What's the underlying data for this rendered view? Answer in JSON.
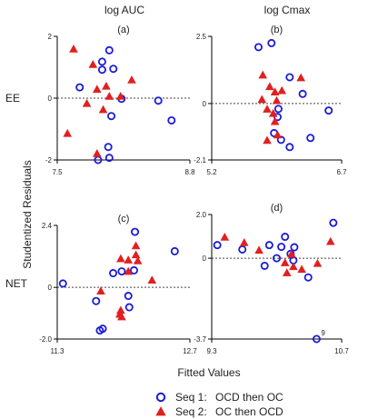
{
  "figure": {
    "column_titles": [
      "log AUC",
      "log Cmax"
    ],
    "row_labels": [
      "EE",
      "NET"
    ],
    "y_axis_title": "Studentized Residuals",
    "x_axis_title": "Fitted Values"
  },
  "legend": {
    "entries": [
      {
        "key": "Seq 1:",
        "desc": "OCD then OC",
        "marker": "circle",
        "color": "#1a1adc"
      },
      {
        "key": "Seq 2:",
        "desc": "OC then OCD",
        "marker": "triangle",
        "color": "#e02020"
      }
    ]
  },
  "chart_data": [
    {
      "type": "scatter",
      "label": "(a)",
      "xlim": [
        7.5,
        8.8
      ],
      "ylim": [
        -2,
        2
      ],
      "x_ticks": [
        "7.5",
        "8.8"
      ],
      "y_ticks": [
        "2",
        "0",
        "-2"
      ],
      "y_tick_values": [
        2,
        0,
        -2
      ],
      "series": [
        {
          "name": "Seq 1: OCD then OC",
          "marker": "circle",
          "points": [
            [
              8.01,
              1.55
            ],
            [
              7.94,
              1.18
            ],
            [
              7.94,
              0.92
            ],
            [
              8.05,
              0.95
            ],
            [
              7.72,
              0.35
            ],
            [
              8.13,
              -0.02
            ],
            [
              8.03,
              -0.58
            ],
            [
              8.49,
              -0.08
            ],
            [
              8.62,
              -0.72
            ],
            [
              8.0,
              -1.58
            ],
            [
              8.01,
              -1.93
            ],
            [
              7.9,
              -2.0
            ]
          ]
        },
        {
          "name": "Seq 2: OC then OCD",
          "marker": "triangle",
          "points": [
            [
              7.66,
              1.58
            ],
            [
              7.85,
              1.08
            ],
            [
              8.23,
              0.58
            ],
            [
              7.98,
              0.38
            ],
            [
              7.89,
              0.28
            ],
            [
              8.01,
              0.05
            ],
            [
              8.12,
              0.05
            ],
            [
              7.79,
              -0.18
            ],
            [
              7.95,
              -0.38
            ],
            [
              7.6,
              -1.15
            ],
            [
              7.89,
              -1.8
            ]
          ]
        }
      ]
    },
    {
      "type": "scatter",
      "label": "(b)",
      "xlim": [
        5.2,
        6.7
      ],
      "ylim": [
        -2.1,
        2.5
      ],
      "x_ticks": [
        "5.2",
        "6.7"
      ],
      "y_ticks": [
        "2.5",
        "0",
        "-2.1"
      ],
      "y_tick_values": [
        2.5,
        0,
        -2.1
      ],
      "series": [
        {
          "name": "Seq 1: OCD then OC",
          "marker": "circle",
          "points": [
            [
              5.74,
              2.1
            ],
            [
              5.89,
              2.25
            ],
            [
              6.1,
              0.98
            ],
            [
              6.25,
              0.36
            ],
            [
              6.55,
              -0.26
            ],
            [
              5.97,
              -0.2
            ],
            [
              5.96,
              -0.5
            ],
            [
              5.92,
              -1.1
            ],
            [
              6.0,
              -1.35
            ],
            [
              6.1,
              -1.62
            ],
            [
              6.34,
              -1.28
            ]
          ]
        },
        {
          "name": "Seq 2: OC then OCD",
          "marker": "triangle",
          "points": [
            [
              5.79,
              1.05
            ],
            [
              6.23,
              0.95
            ],
            [
              5.87,
              0.62
            ],
            [
              5.93,
              0.42
            ],
            [
              6.01,
              0.47
            ],
            [
              5.78,
              0.14
            ],
            [
              5.95,
              0.1
            ],
            [
              5.84,
              -0.22
            ],
            [
              5.91,
              -0.38
            ],
            [
              5.93,
              -0.68
            ],
            [
              5.96,
              -1.18
            ],
            [
              5.84,
              -1.38
            ]
          ]
        }
      ]
    },
    {
      "type": "scatter",
      "label": "(c)",
      "xlim": [
        11.3,
        12.7
      ],
      "ylim": [
        -2.0,
        2.4
      ],
      "x_ticks": [
        "11.3",
        "12.7"
      ],
      "y_ticks": [
        "2.4",
        "0",
        "-2.0"
      ],
      "y_tick_values": [
        2.4,
        0,
        -2.0
      ],
      "series": [
        {
          "name": "Seq 1: OCD then OC",
          "marker": "circle",
          "points": [
            [
              12.12,
              2.15
            ],
            [
              12.54,
              1.4
            ],
            [
              11.98,
              0.62
            ],
            [
              12.11,
              0.66
            ],
            [
              11.89,
              0.55
            ],
            [
              11.36,
              0.15
            ],
            [
              12.05,
              -0.33
            ],
            [
              11.71,
              -0.53
            ],
            [
              12.06,
              -0.77
            ],
            [
              11.75,
              -1.67
            ],
            [
              11.78,
              -1.6
            ]
          ]
        },
        {
          "name": "Seq 2: OC then OCD",
          "marker": "triangle",
          "points": [
            [
              12.13,
              1.6
            ],
            [
              12.13,
              1.25
            ],
            [
              12.05,
              1.05
            ],
            [
              11.97,
              1.1
            ],
            [
              12.15,
              1.02
            ],
            [
              12.05,
              0.61
            ],
            [
              12.3,
              0.27
            ],
            [
              11.76,
              -0.15
            ],
            [
              11.97,
              -0.9
            ],
            [
              11.96,
              -1.05
            ],
            [
              11.98,
              -1.15
            ]
          ]
        }
      ]
    },
    {
      "type": "scatter",
      "label": "(d)",
      "xlim": [
        9.3,
        10.7
      ],
      "ylim": [
        -3.7,
        2.0
      ],
      "x_ticks": [
        "9.3",
        "10.7"
      ],
      "y_ticks": [
        "2.0",
        "0",
        "-3.7"
      ],
      "y_tick_values": [
        2.0,
        0,
        -3.7
      ],
      "series": [
        {
          "name": "Seq 1: OCD then OC",
          "marker": "circle",
          "points": [
            [
              10.61,
              1.62
            ],
            [
              10.09,
              0.98
            ],
            [
              9.36,
              0.6
            ],
            [
              10.19,
              0.5
            ],
            [
              9.92,
              0.6
            ],
            [
              9.63,
              0.4
            ],
            [
              10.05,
              0.52
            ],
            [
              10.15,
              0.2
            ],
            [
              10.0,
              0.0
            ],
            [
              9.87,
              -0.35
            ],
            [
              10.18,
              -0.1
            ],
            [
              10.34,
              -0.88
            ],
            [
              10.43,
              -3.7
            ]
          ]
        },
        {
          "name": "Seq 2: OC then OCD",
          "marker": "triangle",
          "points": [
            [
              9.44,
              0.95
            ],
            [
              9.65,
              0.7
            ],
            [
              10.58,
              0.75
            ],
            [
              9.81,
              0.35
            ],
            [
              10.16,
              0.18
            ],
            [
              10.09,
              -0.22
            ],
            [
              10.18,
              -0.4
            ],
            [
              10.27,
              -0.52
            ],
            [
              10.11,
              -0.68
            ],
            [
              10.44,
              -0.25
            ]
          ]
        }
      ],
      "annotations": [
        {
          "text": "9",
          "x": 10.43,
          "y": -3.7
        }
      ]
    }
  ]
}
